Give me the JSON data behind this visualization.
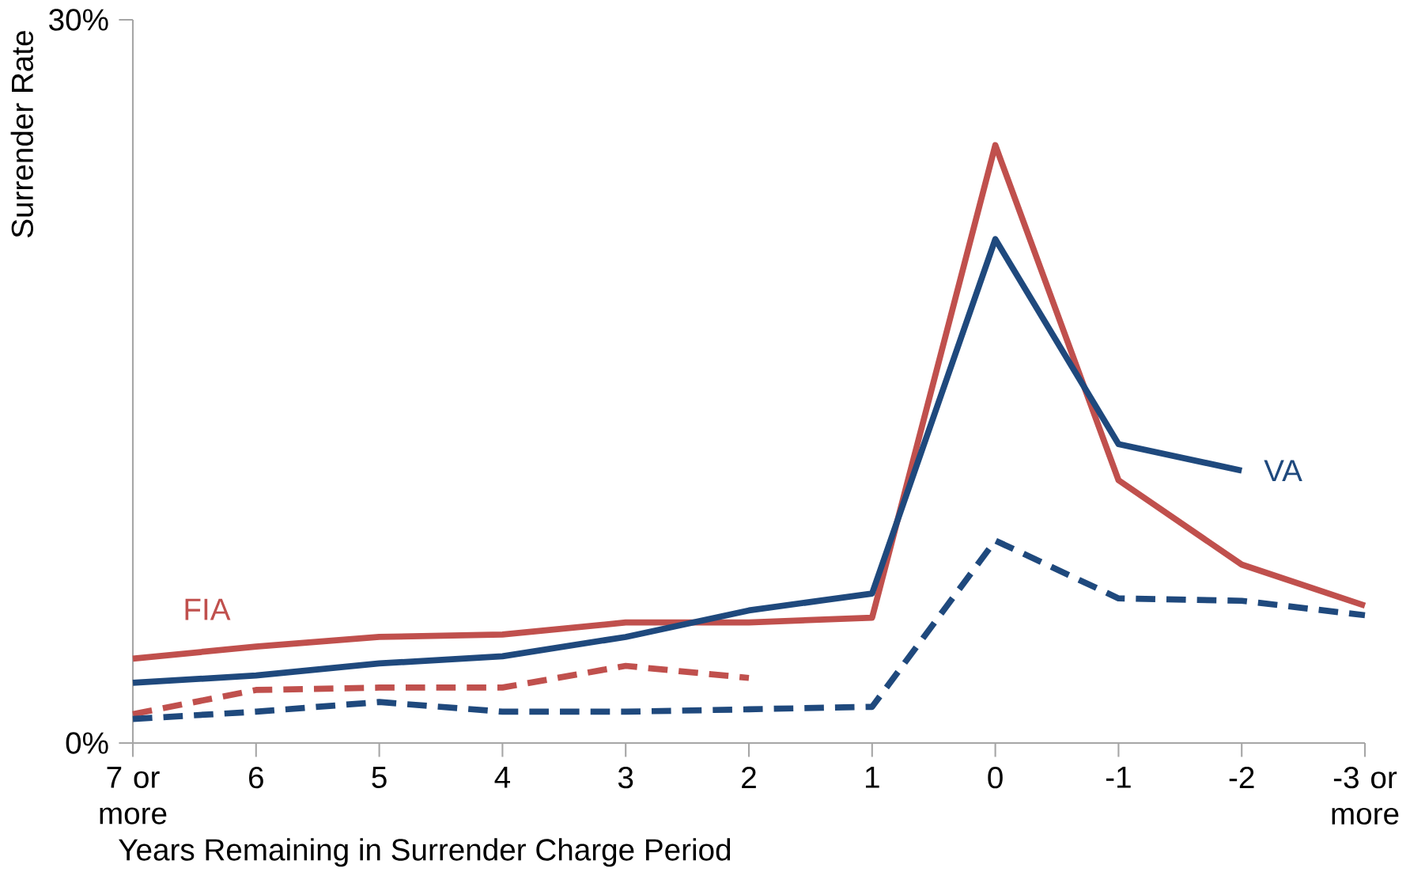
{
  "chart_data": {
    "type": "line",
    "xlabel": "Years Remaining in Surrender Charge Period",
    "ylabel": "Surrender Rate",
    "categories": [
      "7 or more",
      "6",
      "5",
      "4",
      "3",
      "2",
      "1",
      "0",
      "-1",
      "-2",
      "-3 or more"
    ],
    "ylim": [
      0,
      30
    ],
    "yticks": [
      {
        "value": 0,
        "label": "0%"
      },
      {
        "value": 30,
        "label": "30%"
      }
    ],
    "marker": "none",
    "series": [
      {
        "name": "FIA",
        "color": "#c0504d",
        "line_style": "solid",
        "values": [
          3.5,
          4.0,
          4.4,
          4.5,
          5.0,
          5.0,
          5.2,
          24.8,
          10.9,
          7.4,
          5.7
        ]
      },
      {
        "name": "VA",
        "color": "#1f497d",
        "line_style": "solid",
        "values": [
          2.5,
          2.8,
          3.3,
          3.6,
          4.4,
          5.5,
          6.2,
          20.9,
          12.4,
          11.3,
          null
        ]
      },
      {
        "color": "#c0504d",
        "line_style": "dashed",
        "values": [
          1.2,
          2.2,
          2.3,
          2.3,
          3.2,
          2.7,
          null,
          null,
          null,
          null,
          null
        ]
      },
      {
        "color": "#1f497d",
        "line_style": "dashed",
        "values": [
          1.0,
          1.3,
          1.7,
          1.3,
          1.3,
          1.4,
          1.5,
          8.4,
          6.0,
          5.9,
          5.3
        ]
      }
    ]
  }
}
